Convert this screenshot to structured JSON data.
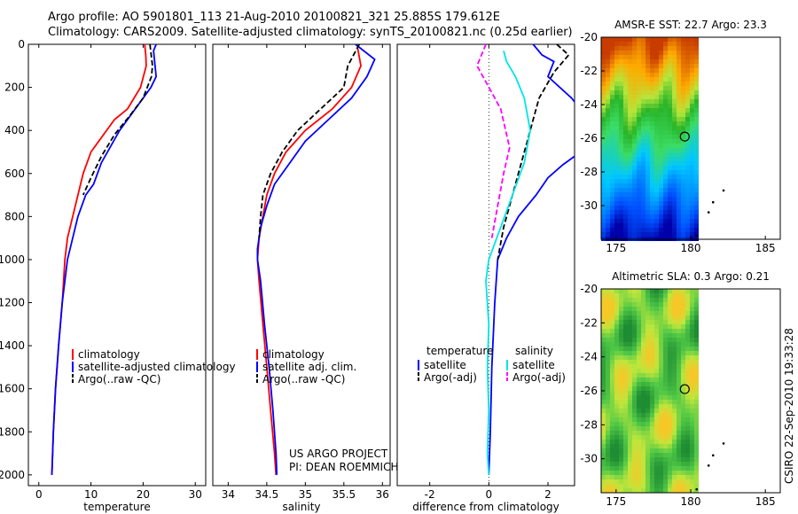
{
  "header": {
    "line1": "Argo profile: AO 5901801_113 21-Aug-2010 20100821_321 25.885S 179.612E",
    "line2": "Climatology: CARS2009. Satellite-adjusted climatology: synTS_20100821.nc (0.25d earlier)"
  },
  "footer": {
    "project": "US ARGO PROJECT",
    "pi": "PI: DEAN ROEMMICH",
    "stamp": "CSIRO  22-Sep-2010 19:33:28"
  },
  "colors": {
    "climatology": "#ff0000",
    "satellite": "#0000ff",
    "argo": "#000000",
    "sst_argo": "#00e5e5",
    "sal_argo": "#ff00ff"
  },
  "chart_data": [
    {
      "type": "line",
      "xlabel": "temperature",
      "xlim": [
        -2,
        32
      ],
      "xticks": [
        0,
        10,
        20,
        30
      ],
      "ylim": [
        2050,
        0
      ],
      "yticks": [
        0,
        200,
        400,
        600,
        800,
        1000,
        1200,
        1400,
        1600,
        1800,
        2000
      ],
      "legend": [
        "climatology",
        "satellite-adjusted climatology",
        "Argo(..raw -QC)"
      ],
      "series": [
        {
          "name": "climatology",
          "color": "#ff0000",
          "dash": "",
          "points": [
            [
              20.3,
              0
            ],
            [
              20.5,
              50
            ],
            [
              20.6,
              100
            ],
            [
              19.5,
              200
            ],
            [
              17.0,
              300
            ],
            [
              14.5,
              350
            ],
            [
              11.5,
              450
            ],
            [
              10.0,
              500
            ],
            [
              8.5,
              600
            ],
            [
              7.5,
              700
            ],
            [
              6.5,
              800
            ],
            [
              5.5,
              900
            ],
            [
              5.0,
              1000
            ],
            [
              4.5,
              1200
            ],
            [
              3.8,
              1400
            ],
            [
              3.2,
              1600
            ],
            [
              2.8,
              1800
            ],
            [
              2.5,
              2000
            ]
          ]
        },
        {
          "name": "satellite-adjusted climatology",
          "color": "#0000ff",
          "dash": "",
          "points": [
            [
              22.5,
              0
            ],
            [
              22.0,
              30
            ],
            [
              22.5,
              150
            ],
            [
              21.5,
              200
            ],
            [
              18.5,
              300
            ],
            [
              15.5,
              400
            ],
            [
              12.0,
              550
            ],
            [
              10.5,
              650
            ],
            [
              9.0,
              700
            ],
            [
              7.5,
              800
            ],
            [
              6.5,
              900
            ],
            [
              5.5,
              1000
            ],
            [
              4.5,
              1200
            ],
            [
              3.8,
              1400
            ],
            [
              3.2,
              1600
            ],
            [
              2.8,
              1800
            ],
            [
              2.5,
              2000
            ]
          ]
        },
        {
          "name": "Argo(..raw -QC)",
          "color": "#000000",
          "dash": "6 3",
          "points": [
            [
              21.3,
              0
            ],
            [
              21.8,
              100
            ],
            [
              21.6,
              150
            ],
            [
              20.0,
              250
            ],
            [
              17.5,
              330
            ],
            [
              14.5,
              420
            ],
            [
              12.0,
              520
            ],
            [
              10.0,
              620
            ],
            [
              8.5,
              700
            ]
          ]
        }
      ]
    },
    {
      "type": "line",
      "xlabel": "salinity",
      "xlim": [
        33.8,
        36.1
      ],
      "xticks": [
        34,
        34.5,
        35,
        35.5,
        36
      ],
      "ylim": [
        2050,
        0
      ],
      "yticks": [],
      "legend": [
        "climatology",
        "satellite adj. clim.",
        "Argo(..raw -QC)"
      ],
      "series": [
        {
          "name": "climatology",
          "color": "#ff0000",
          "dash": "",
          "points": [
            [
              35.68,
              20
            ],
            [
              35.72,
              100
            ],
            [
              35.6,
              200
            ],
            [
              35.35,
              300
            ],
            [
              35.0,
              400
            ],
            [
              34.75,
              500
            ],
            [
              34.6,
              600
            ],
            [
              34.5,
              700
            ],
            [
              34.45,
              800
            ],
            [
              34.4,
              900
            ],
            [
              34.38,
              1000
            ],
            [
              34.4,
              1100
            ],
            [
              34.45,
              1300
            ],
            [
              34.5,
              1500
            ],
            [
              34.55,
              1700
            ],
            [
              34.6,
              1900
            ],
            [
              34.62,
              2000
            ]
          ]
        },
        {
          "name": "satellite adj. clim.",
          "color": "#0000ff",
          "dash": "",
          "points": [
            [
              35.65,
              0
            ],
            [
              35.9,
              70
            ],
            [
              35.8,
              150
            ],
            [
              35.6,
              250
            ],
            [
              35.3,
              350
            ],
            [
              35.0,
              450
            ],
            [
              34.8,
              550
            ],
            [
              34.6,
              650
            ],
            [
              34.5,
              750
            ],
            [
              34.42,
              850
            ],
            [
              34.38,
              950
            ],
            [
              34.38,
              1000
            ],
            [
              34.42,
              1100
            ],
            [
              34.47,
              1300
            ],
            [
              34.53,
              1500
            ],
            [
              34.58,
              1700
            ],
            [
              34.62,
              1900
            ],
            [
              34.63,
              2000
            ]
          ]
        },
        {
          "name": "Argo(..raw -QC)",
          "color": "#000000",
          "dash": "6 3",
          "points": [
            [
              35.7,
              0
            ],
            [
              35.55,
              100
            ],
            [
              35.5,
              200
            ],
            [
              35.2,
              300
            ],
            [
              34.9,
              400
            ],
            [
              34.7,
              500
            ],
            [
              34.55,
              600
            ],
            [
              34.45,
              700
            ],
            [
              34.42,
              800
            ],
            [
              34.4,
              900
            ]
          ]
        }
      ]
    },
    {
      "type": "line",
      "xlabel": "difference from climatology",
      "xlim": [
        -3.1,
        2.9
      ],
      "xticks": [
        -2,
        0,
        2
      ],
      "ylim": [
        2050,
        0
      ],
      "yticks": [],
      "legend_groups": [
        "temperature",
        "salinity"
      ],
      "legend": [
        "satellite",
        "Argo(-adj)",
        "satellite",
        "Argo(-adj)"
      ],
      "series": [
        {
          "name": "satellite",
          "color": "#0000ff",
          "dash": "",
          "points": [
            [
              1.5,
              0
            ],
            [
              1.8,
              50
            ],
            [
              2.2,
              80
            ],
            [
              2.0,
              150
            ],
            [
              2.8,
              250
            ],
            [
              3.2,
              320
            ]
          ],
          "points2": [
            [
              3.1,
              500
            ],
            [
              2.5,
              560
            ],
            [
              2.0,
              620
            ],
            [
              1.6,
              700
            ],
            [
              1.0,
              800
            ],
            [
              0.6,
              900
            ],
            [
              0.3,
              1000
            ],
            [
              0.2,
              1200
            ],
            [
              0.1,
              1500
            ],
            [
              0.05,
              1800
            ],
            [
              0.0,
              2000
            ]
          ]
        },
        {
          "name": "Argo(-adj)",
          "color": "#000000",
          "dash": "6 3",
          "points": [
            [
              2.3,
              0
            ],
            [
              2.7,
              50
            ],
            [
              2.2,
              130
            ],
            [
              1.7,
              250
            ],
            [
              1.5,
              350
            ],
            [
              1.3,
              450
            ],
            [
              1.1,
              550
            ],
            [
              0.9,
              650
            ],
            [
              0.7,
              750
            ],
            [
              0.5,
              850
            ],
            [
              0.3,
              1000
            ]
          ]
        },
        {
          "name": "satellite",
          "color": "#00e5e5",
          "dash": "",
          "points": [
            [
              0.5,
              30
            ],
            [
              0.6,
              80
            ],
            [
              0.9,
              150
            ],
            [
              1.2,
              250
            ],
            [
              1.4,
              400
            ],
            [
              1.2,
              550
            ],
            [
              0.8,
              700
            ],
            [
              0.4,
              850
            ],
            [
              0.0,
              1000
            ],
            [
              -0.1,
              1100
            ],
            [
              0.0,
              1300
            ],
            [
              -0.05,
              1500
            ],
            [
              0.0,
              1700
            ],
            [
              -0.05,
              1900
            ],
            [
              0.0,
              2000
            ]
          ]
        },
        {
          "name": "Argo(-adj)",
          "color": "#ff00ff",
          "dash": "6 3",
          "points": [
            [
              -0.1,
              0
            ],
            [
              -0.4,
              100
            ],
            [
              -0.2,
              150
            ],
            [
              0.4,
              300
            ],
            [
              0.7,
              480
            ],
            [
              0.5,
              600
            ],
            [
              0.3,
              750
            ],
            [
              0.1,
              900
            ]
          ]
        }
      ]
    }
  ],
  "maps": [
    {
      "title": "AMSR-E SST: 22.7 Argo: 23.3",
      "ylim": [
        -32,
        -20
      ],
      "yticks": [
        -20,
        -22,
        -24,
        -26,
        -28,
        -30
      ],
      "xlim": [
        174,
        186
      ],
      "xticks": [
        175,
        180,
        185
      ],
      "float_position": [
        179.6,
        -25.9
      ],
      "track": [
        [
          182.2,
          -29.1
        ],
        [
          181.5,
          -29.8
        ],
        [
          181.2,
          -30.4
        ],
        [
          180.4,
          -31.8
        ]
      ]
    },
    {
      "title": "Altimetric SLA: 0.3 Argo: 0.21",
      "ylim": [
        -32,
        -20
      ],
      "yticks": [
        -20,
        -22,
        -24,
        -26,
        -28,
        -30
      ],
      "xlim": [
        174,
        186
      ],
      "xticks": [
        175,
        180,
        185
      ],
      "float_position": [
        179.6,
        -25.9
      ],
      "track": [
        [
          182.2,
          -29.1
        ],
        [
          181.5,
          -29.8
        ],
        [
          181.2,
          -30.4
        ],
        [
          180.4,
          -31.8
        ]
      ]
    }
  ]
}
